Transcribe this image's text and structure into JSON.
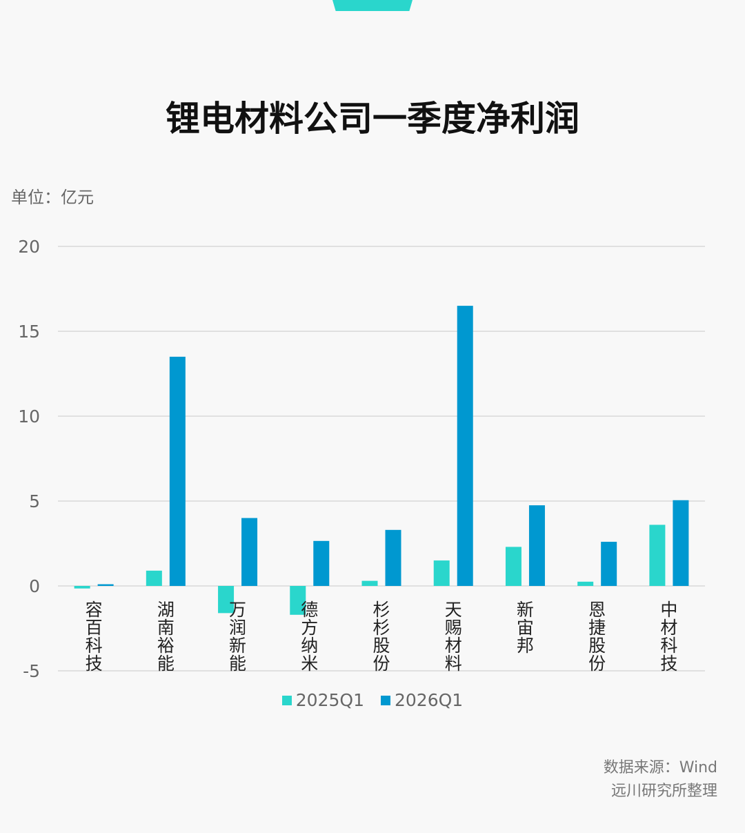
{
  "title": "锂电材料公司一季度净利润",
  "unit_label": "单位：亿元",
  "source_line1": "数据来源：Wind",
  "source_line2": "远川研究所整理",
  "colors": {
    "s2025": "#2ad6cc",
    "s2026": "#0098d0",
    "grid": "#d8d8d8",
    "tick": "#666666",
    "category": "#222222"
  },
  "chart_data": {
    "type": "bar",
    "categories": [
      "容百科技",
      "湖南裕能",
      "万润新能",
      "德方纳米",
      "杉杉股份",
      "天赐材料",
      "新宙邦",
      "恩捷股份",
      "中材科技"
    ],
    "series": [
      {
        "name": "2025Q1",
        "values": [
          -0.15,
          0.9,
          -1.6,
          -1.7,
          0.3,
          1.5,
          2.3,
          0.25,
          3.6
        ]
      },
      {
        "name": "2026Q1",
        "values": [
          0.1,
          13.5,
          4.0,
          2.65,
          3.3,
          16.5,
          4.75,
          2.6,
          5.05
        ]
      }
    ],
    "ylim": [
      -5,
      20
    ],
    "yticks": [
      -5,
      0,
      5,
      10,
      15,
      20
    ],
    "grid": true,
    "legend": "bottom-center"
  }
}
